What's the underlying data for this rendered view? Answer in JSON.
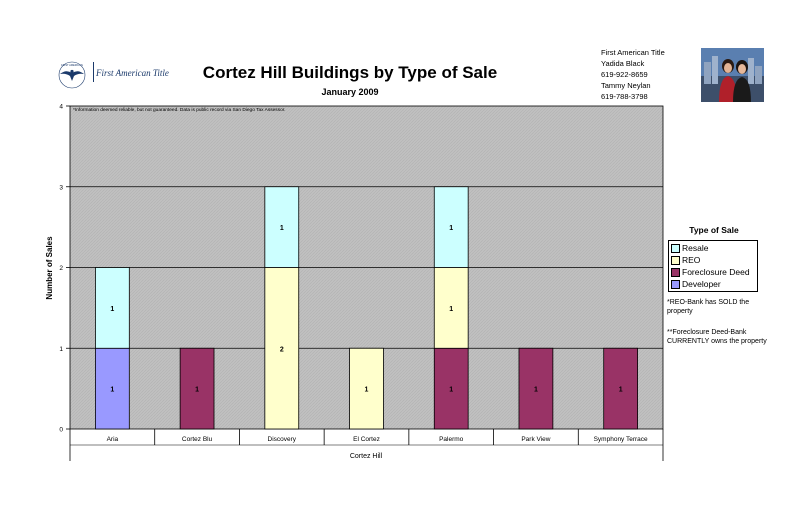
{
  "header": {
    "logo_text": "First American Title",
    "logo_seal_text": "FIRST AMERICAN",
    "title": "Cortez Hill Buildings by Type of Sale",
    "subtitle": "January 2009"
  },
  "contact": {
    "lines": [
      "First American Title",
      "Yadida Black",
      "619-922-8659",
      "Tammy Neylan",
      "619-788-3798"
    ]
  },
  "photo": {
    "icon": "agents-photo"
  },
  "disclaimer": "*Information deemed reliable, but not guaranteed. Data is public record via San Diego Tax Assessor.",
  "legend": {
    "title": "Type of Sale",
    "items": [
      {
        "label": "Resale",
        "color": "#ccffff"
      },
      {
        "label": "REO",
        "color": "#ffffcc"
      },
      {
        "label": "Foreclosure Deed",
        "color": "#993366"
      },
      {
        "label": "Developer",
        "color": "#9999ff"
      }
    ]
  },
  "notes": [
    "*REO-Bank has SOLD the property",
    "**Foreclosure Deed-Bank CURRENTLY owns the property"
  ],
  "chart_data": {
    "type": "bar",
    "stacked": true,
    "title": "Cortez Hill Buildings by Type of Sale",
    "subtitle": "January 2009",
    "xlabel": "Cortez Hill",
    "ylabel": "Number of Sales",
    "ylim": [
      0,
      4
    ],
    "yticks": [
      0,
      1,
      2,
      3,
      4
    ],
    "grid": true,
    "plot_background": "#c0c0c0",
    "legend_position": "right",
    "categories": [
      "Aria",
      "Cortez Blu",
      "Discovery",
      "El Cortez",
      "Palermo",
      "Park View",
      "Symphony Terrace"
    ],
    "series": [
      {
        "name": "Developer",
        "color": "#9999ff",
        "values": [
          1,
          0,
          0,
          0,
          0,
          0,
          0
        ]
      },
      {
        "name": "Foreclosure Deed",
        "color": "#993366",
        "values": [
          0,
          1,
          0,
          0,
          1,
          1,
          1
        ]
      },
      {
        "name": "REO",
        "color": "#ffffcc",
        "values": [
          0,
          0,
          2,
          1,
          1,
          0,
          0
        ]
      },
      {
        "name": "Resale",
        "color": "#ccffff",
        "values": [
          1,
          0,
          1,
          0,
          1,
          0,
          0
        ]
      }
    ]
  }
}
